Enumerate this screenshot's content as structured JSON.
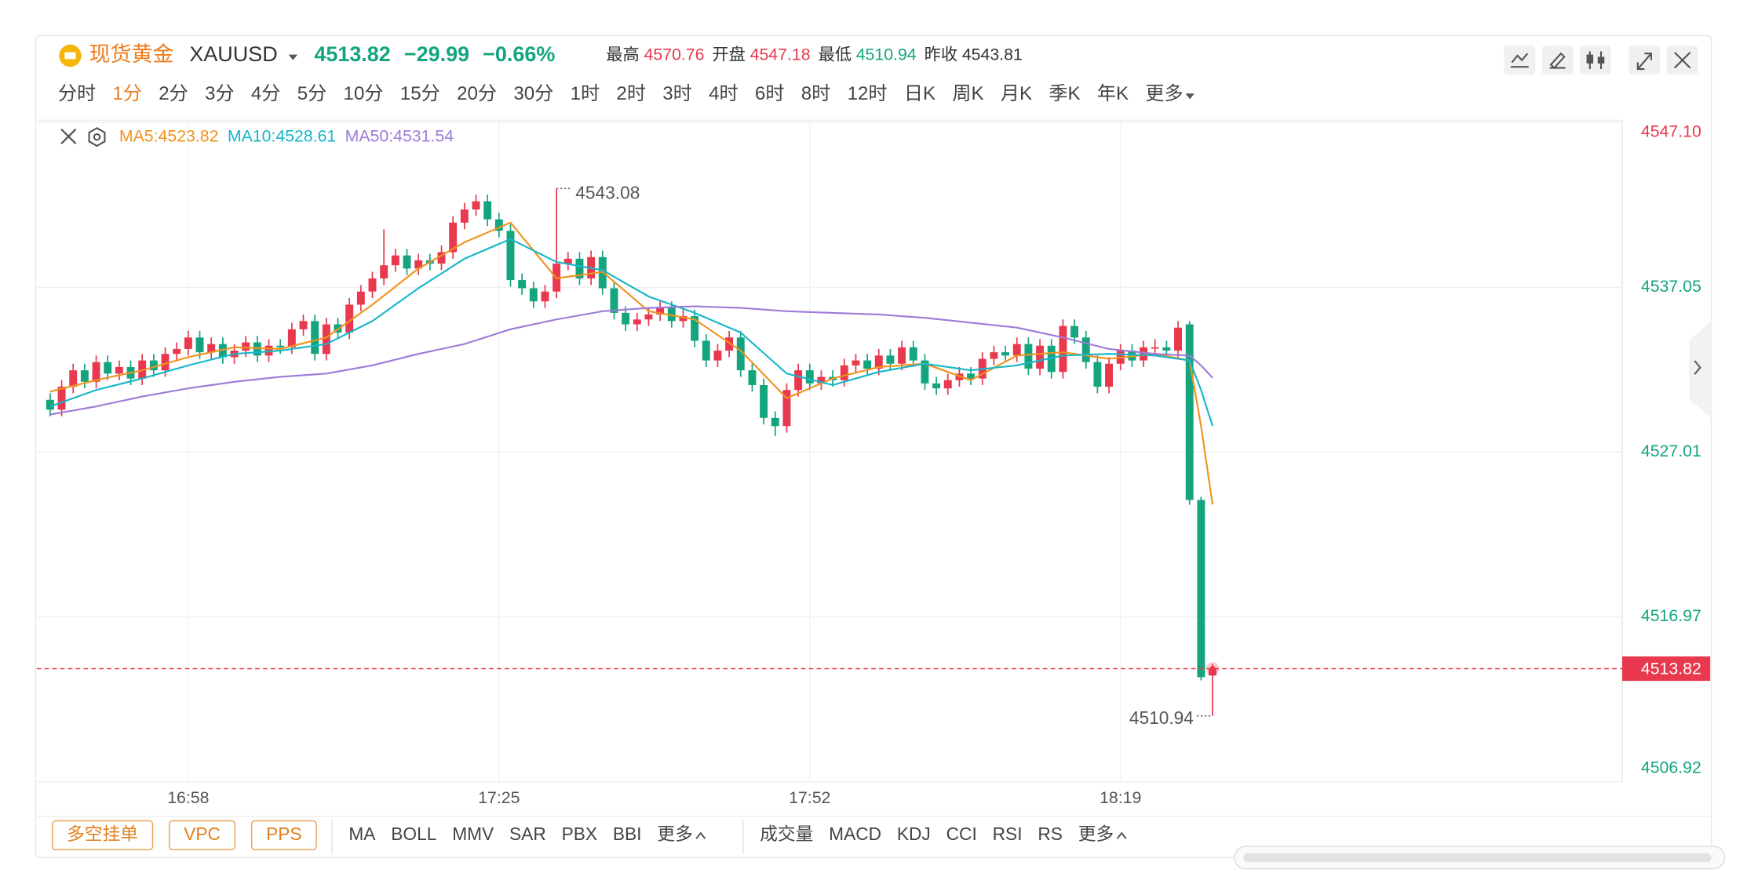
{
  "header": {
    "name": "现货黄金",
    "symbol": "XAUUSD",
    "price": "4513.82",
    "change": "−29.99",
    "change_pct": "−0.66%",
    "stats": [
      {
        "label": "最高",
        "value": "4570.76",
        "tone": "up"
      },
      {
        "label": "开盘",
        "value": "4547.18",
        "tone": "up"
      },
      {
        "label": "最低",
        "value": "4510.94",
        "tone": "down"
      },
      {
        "label": "昨收",
        "value": 4543.81,
        "tone": "flat"
      }
    ]
  },
  "timeframes": [
    "分时",
    "1分",
    "2分",
    "3分",
    "4分",
    "5分",
    "10分",
    "15分",
    "20分",
    "30分",
    "1时",
    "2时",
    "3时",
    "4时",
    "6时",
    "8时",
    "12时",
    "日K",
    "周K",
    "月K",
    "季K",
    "年K",
    "更多"
  ],
  "active_timeframe": 1,
  "toolbar": {
    "buttons": [
      "多空挂单",
      "VPC",
      "PPS"
    ],
    "main_indicators": [
      "MA",
      "BOLL",
      "MMV",
      "SAR",
      "PBX",
      "BBI",
      "更多"
    ],
    "sub_indicators": [
      "成交量",
      "MACD",
      "KDJ",
      "CCI",
      "RSI",
      "RS",
      "更多"
    ]
  },
  "chart_data": {
    "type": "candlestick",
    "up_color": "#e8394e",
    "down_color": "#14a57f",
    "categories": [
      null,
      null,
      null,
      null,
      null,
      null,
      null,
      null,
      null,
      null,
      null,
      null,
      "16:58",
      null,
      null,
      null,
      null,
      null,
      null,
      null,
      null,
      null,
      null,
      null,
      null,
      null,
      null,
      null,
      null,
      null,
      null,
      null,
      null,
      null,
      null,
      null,
      null,
      null,
      null,
      "17:25",
      null,
      null,
      null,
      null,
      null,
      null,
      null,
      null,
      null,
      null,
      null,
      null,
      null,
      null,
      null,
      null,
      null,
      null,
      null,
      null,
      null,
      null,
      null,
      null,
      null,
      null,
      "17:52",
      null,
      null,
      null,
      null,
      null,
      null,
      null,
      null,
      null,
      null,
      null,
      null,
      null,
      null,
      null,
      null,
      null,
      null,
      null,
      null,
      null,
      null,
      null,
      null,
      null,
      null,
      "18:19",
      null,
      null,
      null,
      null,
      null,
      null,
      null,
      null
    ],
    "open": [
      4530.2,
      4529.6,
      4531.0,
      4532.0,
      4531.3,
      4532.5,
      4531.8,
      4532.2,
      4531.5,
      4532.6,
      4532.0,
      4533.0,
      4533.3,
      4534.0,
      4533.1,
      4533.6,
      4532.8,
      4533.2,
      4533.7,
      4532.9,
      4533.5,
      4533.4,
      4534.5,
      4535.0,
      4533.0,
      4534.8,
      4534.3,
      4536.0,
      4536.8,
      4537.6,
      4538.4,
      4539.0,
      4538.2,
      4538.7,
      4538.5,
      4539.2,
      4541.0,
      4541.8,
      4542.3,
      4541.2,
      4540.5,
      4537.5,
      4537.0,
      4536.2,
      4536.8,
      4538.5,
      4538.8,
      4537.6,
      4538.9,
      4537.0,
      4535.5,
      4534.8,
      4535.1,
      4535.4,
      4535.8,
      4535.0,
      4535.3,
      4533.8,
      4532.6,
      4533.2,
      4534.0,
      4532.0,
      4531.1,
      4529.1,
      4528.6,
      4530.8,
      4532.0,
      4531.2,
      4531.6,
      4531.4,
      4532.3,
      4532.6,
      4532.1,
      4532.9,
      4532.4,
      4533.4,
      4532.6,
      4531.2,
      4530.9,
      4531.4,
      4531.8,
      4531.5,
      4532.7,
      4533.1,
      4532.9,
      4533.6,
      4532.1,
      4533.5,
      4531.9,
      4534.7,
      4534.0,
      4532.5,
      4531.0,
      4532.4,
      4533.2,
      4532.6,
      4533.4,
      4533.4,
      4533.2,
      4534.8,
      4524.1,
      4513.4
    ],
    "high": [
      4530.6,
      4531.4,
      4532.4,
      4532.4,
      4532.9,
      4532.9,
      4532.6,
      4532.6,
      4533.0,
      4533.0,
      4533.4,
      4533.7,
      4534.4,
      4534.4,
      4534.0,
      4534.0,
      4533.6,
      4534.1,
      4534.1,
      4533.9,
      4533.9,
      4534.9,
      4535.4,
      4535.4,
      4535.2,
      4535.2,
      4536.4,
      4537.2,
      4538.0,
      4540.6,
      4539.4,
      4539.4,
      4539.1,
      4539.1,
      4539.6,
      4541.4,
      4542.2,
      4542.7,
      4542.7,
      4541.6,
      4540.9,
      4537.9,
      4537.4,
      4537.2,
      4543.08,
      4539.2,
      4539.2,
      4539.3,
      4539.3,
      4537.4,
      4535.9,
      4535.5,
      4535.8,
      4536.2,
      4536.2,
      4535.7,
      4535.7,
      4534.2,
      4533.6,
      4534.4,
      4534.4,
      4532.4,
      4531.5,
      4529.5,
      4531.2,
      4532.4,
      4532.4,
      4532.0,
      4532.0,
      4532.7,
      4533.0,
      4533.0,
      4533.3,
      4533.3,
      4533.8,
      4533.8,
      4533.0,
      4531.6,
      4531.8,
      4532.2,
      4532.2,
      4533.1,
      4533.5,
      4533.5,
      4534.0,
      4534.0,
      4533.9,
      4533.9,
      4535.1,
      4535.1,
      4534.4,
      4532.9,
      4532.8,
      4533.6,
      4533.6,
      4533.8,
      4533.9,
      4533.8,
      4535.0,
      4535.0,
      4524.3,
      4514.1
    ],
    "low": [
      4529.2,
      4529.2,
      4530.6,
      4530.9,
      4530.9,
      4531.4,
      4531.4,
      4531.1,
      4531.1,
      4531.6,
      4531.6,
      4532.6,
      4532.9,
      4532.7,
      4532.7,
      4532.4,
      4532.4,
      4532.8,
      4532.5,
      4532.5,
      4533.0,
      4533.0,
      4534.1,
      4532.6,
      4532.6,
      4533.9,
      4533.9,
      4535.6,
      4536.4,
      4537.2,
      4538.0,
      4537.8,
      4537.8,
      4538.1,
      4538.1,
      4538.8,
      4540.6,
      4541.4,
      4540.8,
      4540.1,
      4537.1,
      4536.6,
      4535.8,
      4535.8,
      4536.4,
      4538.1,
      4537.2,
      4537.2,
      4536.6,
      4535.1,
      4534.4,
      4534.4,
      4534.7,
      4535.0,
      4534.6,
      4534.6,
      4533.4,
      4532.2,
      4532.2,
      4532.8,
      4531.6,
      4530.7,
      4528.7,
      4528.0,
      4528.2,
      4530.4,
      4530.8,
      4530.8,
      4531.0,
      4531.0,
      4531.9,
      4531.7,
      4531.7,
      4532.0,
      4532.0,
      4532.2,
      4530.8,
      4530.5,
      4530.5,
      4531.0,
      4531.1,
      4531.1,
      4532.3,
      4532.5,
      4532.5,
      4531.7,
      4531.7,
      4531.5,
      4531.5,
      4533.6,
      4532.1,
      4530.6,
      4530.6,
      4532.0,
      4532.2,
      4532.2,
      4532.9,
      4532.8,
      4532.8,
      4523.8,
      4513.1,
      4510.94
    ],
    "close": [
      4529.6,
      4531.0,
      4532.0,
      4531.3,
      4532.5,
      4531.8,
      4532.2,
      4531.5,
      4532.6,
      4532.0,
      4533.0,
      4533.3,
      4534.0,
      4533.1,
      4533.6,
      4532.8,
      4533.2,
      4533.7,
      4532.9,
      4533.5,
      4533.4,
      4534.5,
      4535.0,
      4533.0,
      4534.8,
      4534.3,
      4536.0,
      4536.8,
      4537.6,
      4538.4,
      4539.0,
      4538.2,
      4538.7,
      4538.5,
      4539.2,
      4541.0,
      4541.8,
      4542.3,
      4541.2,
      4540.5,
      4537.5,
      4537.0,
      4536.2,
      4536.8,
      4538.5,
      4538.8,
      4537.6,
      4538.9,
      4537.0,
      4535.5,
      4534.8,
      4535.1,
      4535.4,
      4535.8,
      4535.0,
      4535.3,
      4533.8,
      4532.6,
      4533.2,
      4534.0,
      4532.0,
      4531.1,
      4529.1,
      4528.6,
      4530.8,
      4532.0,
      4531.2,
      4531.6,
      4531.4,
      4532.3,
      4532.6,
      4532.1,
      4532.9,
      4532.4,
      4533.4,
      4532.6,
      4531.2,
      4530.9,
      4531.4,
      4531.8,
      4531.5,
      4532.7,
      4533.1,
      4532.9,
      4533.6,
      4532.1,
      4533.5,
      4531.9,
      4534.7,
      4534.0,
      4532.5,
      4531.0,
      4532.4,
      4533.2,
      4532.6,
      4533.4,
      4533.4,
      4533.2,
      4534.6,
      4524.1,
      4513.3,
      4513.82
    ],
    "ma": [
      {
        "legend": "MA5:4523.82",
        "color": "#f0921e",
        "x": [
          0,
          4,
          8,
          12,
          16,
          20,
          24,
          28,
          32,
          36,
          40,
          44,
          48,
          52,
          56,
          60,
          64,
          68,
          72,
          76,
          80,
          84,
          88,
          92,
          96,
          99,
          100,
          101
        ],
        "values": [
          4530.7,
          4531.4,
          4532.0,
          4532.8,
          4533.4,
          4533.3,
          4534.0,
          4536.0,
          4538.2,
          4539.8,
          4541.0,
          4537.6,
          4538.0,
          4535.6,
          4535.1,
          4533.2,
          4530.3,
          4531.5,
          4532.2,
          4532.4,
          4531.4,
          4532.9,
          4533.1,
          4532.7,
          4533.0,
          4532.6,
          4528.6,
          4523.82
        ]
      },
      {
        "legend": "MA10:4528.61",
        "color": "#17b6c9",
        "x": [
          0,
          4,
          8,
          12,
          16,
          20,
          24,
          28,
          32,
          36,
          40,
          44,
          48,
          52,
          56,
          60,
          64,
          68,
          72,
          76,
          80,
          84,
          88,
          92,
          96,
          99,
          100,
          101
        ],
        "values": [
          4529.8,
          4530.8,
          4531.5,
          4532.3,
          4533.0,
          4533.2,
          4533.6,
          4535.0,
          4537.0,
          4538.8,
          4540.0,
          4538.6,
          4538.1,
          4536.5,
          4535.5,
          4534.3,
          4531.8,
          4531.1,
          4531.9,
          4532.4,
          4532.0,
          4532.3,
          4532.9,
          4533.0,
          4532.9,
          4532.6,
          4530.8,
          4528.61
        ]
      },
      {
        "legend": "MA50:4531.54",
        "color": "#9d7bd8",
        "x": [
          0,
          4,
          8,
          12,
          16,
          20,
          24,
          28,
          32,
          36,
          40,
          44,
          48,
          52,
          56,
          60,
          64,
          68,
          72,
          76,
          80,
          84,
          88,
          92,
          96,
          99,
          100,
          101
        ],
        "values": [
          4529.3,
          4529.8,
          4530.4,
          4530.9,
          4531.3,
          4531.6,
          4531.8,
          4532.3,
          4533.0,
          4533.6,
          4534.5,
          4535.1,
          4535.6,
          4535.8,
          4535.9,
          4535.8,
          4535.6,
          4535.5,
          4535.4,
          4535.2,
          4534.9,
          4534.6,
          4534.0,
          4533.3,
          4533.0,
          4532.9,
          4532.3,
          4531.54
        ]
      }
    ],
    "ylim": [
      4506.92,
      4547.1
    ],
    "yticks": [
      4506.92,
      4516.97,
      4527.01,
      4537.05,
      {
        "value": 4547.1,
        "label": "4547.10"
      }
    ],
    "grid": true
  }
}
